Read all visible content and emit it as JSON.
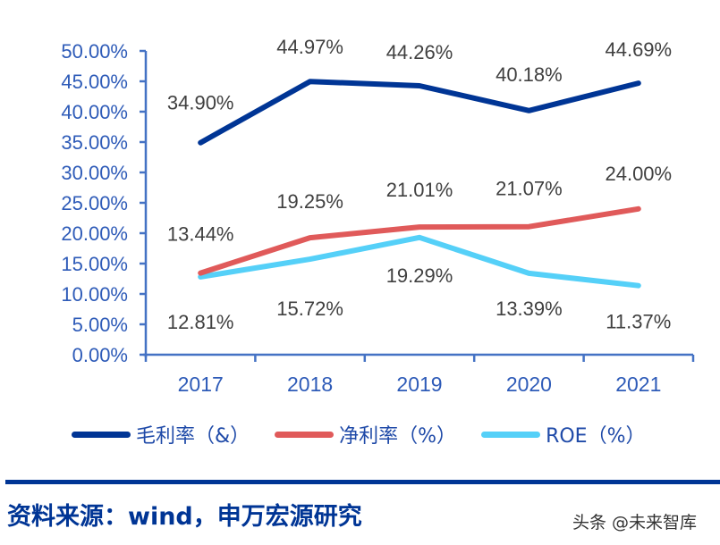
{
  "chart_data": {
    "type": "line",
    "title": "",
    "xlabel": "",
    "ylabel": "",
    "categories": [
      "2017",
      "2018",
      "2019",
      "2020",
      "2021"
    ],
    "ylim": [
      0,
      50
    ],
    "yticks": [
      "0.00%",
      "5.00%",
      "10.00%",
      "15.00%",
      "20.00%",
      "25.00%",
      "30.00%",
      "35.00%",
      "40.00%",
      "45.00%",
      "50.00%"
    ],
    "ytick_values": [
      0,
      5,
      10,
      15,
      20,
      25,
      30,
      35,
      40,
      45,
      50
    ],
    "grid": false,
    "legend_position": "bottom",
    "series": [
      {
        "name": "毛利率（&）",
        "color": "#003595",
        "values": [
          34.9,
          44.97,
          44.26,
          40.18,
          44.69
        ],
        "labels": [
          "34.90%",
          "44.97%",
          "44.26%",
          "40.18%",
          "44.69%"
        ],
        "label_side": [
          "above",
          "above",
          "above",
          "above",
          "above"
        ]
      },
      {
        "name": "净利率（%）",
        "color": "#e05a5a",
        "values": [
          13.44,
          19.25,
          21.01,
          21.07,
          24.0
        ],
        "labels": [
          "13.44%",
          "19.25%",
          "21.01%",
          "21.07%",
          "24.00%"
        ],
        "label_side": [
          "above",
          "above",
          "above",
          "above",
          "above"
        ]
      },
      {
        "name": "ROE（%）",
        "color": "#55d0f8",
        "values": [
          12.81,
          15.72,
          19.29,
          13.39,
          11.37
        ],
        "labels": [
          "12.81%",
          "15.72%",
          "19.29%",
          "13.39%",
          "11.37%"
        ],
        "label_side": [
          "below",
          "below",
          "below",
          "below",
          "below"
        ]
      }
    ]
  },
  "footer": {
    "source": "资料来源：wind，申万宏源研究",
    "watermark": "头条 @未来智库"
  }
}
